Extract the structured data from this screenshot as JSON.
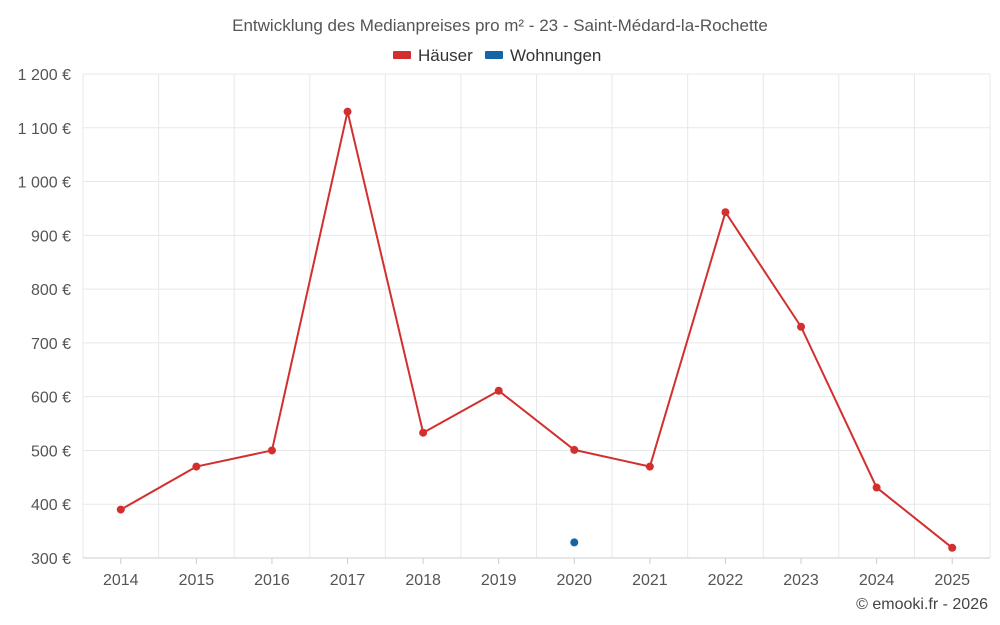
{
  "chart_data": {
    "type": "line",
    "title": "Entwicklung des Medianpreises pro m² - 23 - Saint-Médard-la-Rochette",
    "x": [
      "2014",
      "2015",
      "2016",
      "2017",
      "2018",
      "2019",
      "2020",
      "2021",
      "2022",
      "2023",
      "2024",
      "2025"
    ],
    "y_ticks": [
      "300 €",
      "400 €",
      "500 €",
      "600 €",
      "700 €",
      "800 €",
      "900 €",
      "1 000 €",
      "1 100 €",
      "1 200 €"
    ],
    "ylim": [
      300,
      1200
    ],
    "grid": true,
    "legend_position": "top-center",
    "series": [
      {
        "name": "Häuser",
        "color": "#d32f2f",
        "values": [
          390,
          470,
          500,
          1130,
          533,
          611,
          501,
          470,
          943,
          730,
          431,
          319
        ]
      },
      {
        "name": "Wohnungen",
        "color": "#1565a6",
        "values": [
          null,
          null,
          null,
          null,
          null,
          null,
          329,
          null,
          null,
          null,
          null,
          null
        ]
      }
    ],
    "credit": "© emooki.fr - 2026"
  }
}
